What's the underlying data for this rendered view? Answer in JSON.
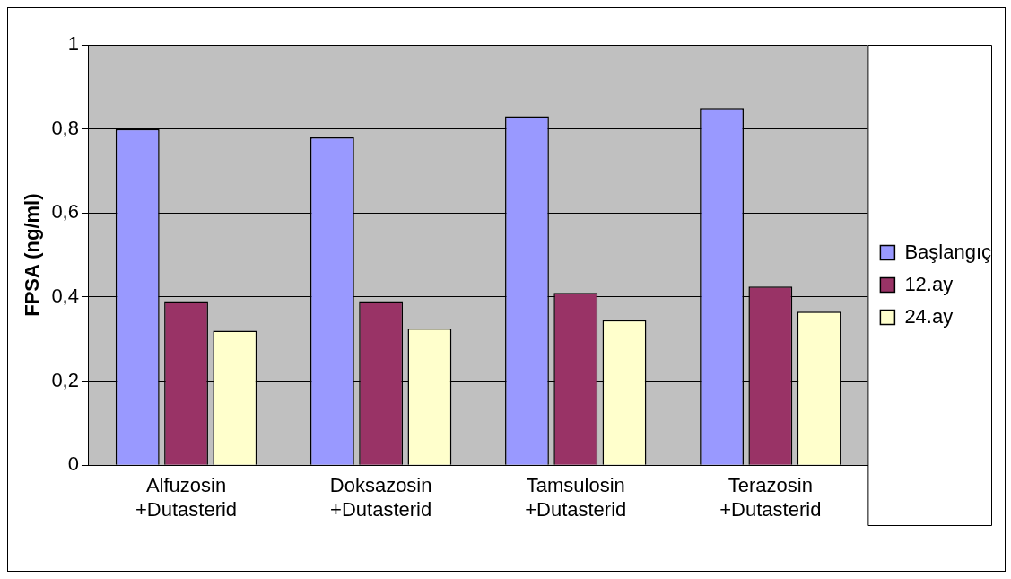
{
  "chart_data": {
    "type": "bar",
    "ylabel": "FPSA (ng/ml)",
    "categories": [
      "Alfuzosin +Dutasterid",
      "Doksazosin +Dutasterid",
      "Tamsulosin +Dutasterid",
      "Terazosin +Dutasterid"
    ],
    "series": [
      {
        "name": "Başlangıç",
        "color": "#9999ff",
        "values": [
          0.8,
          0.78,
          0.83,
          0.85
        ]
      },
      {
        "name": "12.ay",
        "color": "#993366",
        "values": [
          0.39,
          0.39,
          0.41,
          0.425
        ]
      },
      {
        "name": "24.ay",
        "color": "#ffffcc",
        "values": [
          0.32,
          0.325,
          0.345,
          0.365
        ]
      }
    ],
    "ylim": [
      0,
      1
    ],
    "yticks": [
      {
        "value": 0,
        "label": "0"
      },
      {
        "value": 0.2,
        "label": "0,2"
      },
      {
        "value": 0.4,
        "label": "0,4"
      },
      {
        "value": 0.6,
        "label": "0,6"
      },
      {
        "value": 0.8,
        "label": "0,8"
      },
      {
        "value": 1,
        "label": "1"
      }
    ],
    "grid": "y",
    "legend": "right"
  }
}
